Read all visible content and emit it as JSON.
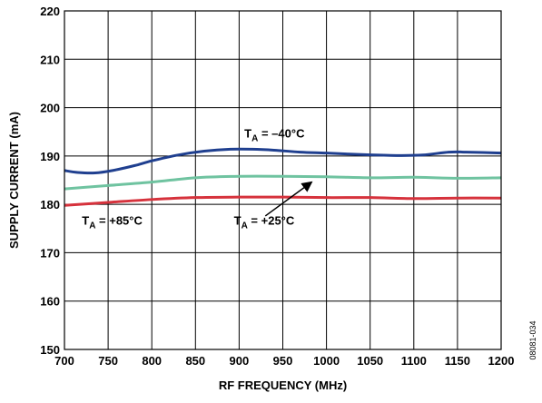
{
  "chart_data": {
    "type": "line",
    "xlabel": "RF FREQUENCY (MHz)",
    "ylabel": "SUPPLY CURRENT (mA)",
    "xlim": [
      700,
      1200
    ],
    "ylim": [
      150,
      220
    ],
    "x_ticks": [
      700,
      750,
      800,
      850,
      900,
      950,
      1000,
      1050,
      1100,
      1150,
      1200
    ],
    "y_ticks": [
      150,
      160,
      170,
      180,
      190,
      200,
      210,
      220
    ],
    "grid": true,
    "series": [
      {
        "color": "#1f3f8f",
        "x": [
          700,
          715,
          735,
          755,
          780,
          800,
          830,
          860,
          890,
          915,
          940,
          970,
          1000,
          1040,
          1080,
          1110,
          1140,
          1160,
          1200
        ],
        "y": [
          187.0,
          186.6,
          186.5,
          187.0,
          188.0,
          189.0,
          190.2,
          191.0,
          191.4,
          191.4,
          191.2,
          190.8,
          190.6,
          190.3,
          190.1,
          190.2,
          190.8,
          190.8,
          190.6
        ]
      },
      {
        "color": "#6fc3a0",
        "x": [
          700,
          750,
          800,
          850,
          900,
          950,
          1000,
          1050,
          1100,
          1150,
          1200
        ],
        "y": [
          183.2,
          183.9,
          184.6,
          185.5,
          185.8,
          185.8,
          185.7,
          185.5,
          185.6,
          185.4,
          185.5
        ]
      },
      {
        "color": "#d6323c",
        "x": [
          700,
          750,
          800,
          850,
          900,
          950,
          1000,
          1050,
          1100,
          1150,
          1200
        ],
        "y": [
          179.8,
          180.4,
          181.0,
          181.4,
          181.5,
          181.5,
          181.4,
          181.4,
          181.2,
          181.3,
          181.3
        ]
      }
    ],
    "annotations": [
      {
        "text": "T",
        "sub": "A",
        "rest": " = –40°C",
        "x": 906,
        "y": 193.8
      },
      {
        "text": "T",
        "sub": "A",
        "rest": " = +85°C",
        "x": 720,
        "y": 175.8
      },
      {
        "text": "T",
        "sub": "A",
        "rest": " = +25°C",
        "x": 894,
        "y": 175.8
      }
    ],
    "arrow": {
      "from": [
        930,
        177.6
      ],
      "to": [
        983,
        184.6
      ]
    },
    "figure_id": "08081-034"
  }
}
